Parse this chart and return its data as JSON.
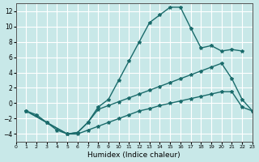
{
  "xlabel": "Humidex (Indice chaleur)",
  "ylabel": "",
  "background_color": "#c8e8e8",
  "grid_color": "#ffffff",
  "line_color": "#1a6b6b",
  "xlim": [
    0,
    23
  ],
  "ylim": [
    -5,
    13
  ],
  "xticks": [
    0,
    1,
    2,
    3,
    4,
    5,
    6,
    7,
    8,
    9,
    10,
    11,
    12,
    13,
    14,
    15,
    16,
    17,
    18,
    19,
    20,
    21,
    22,
    23
  ],
  "yticks": [
    -4,
    -2,
    0,
    2,
    4,
    6,
    8,
    10,
    12
  ],
  "line1_x": [
    1,
    2,
    3,
    4,
    5,
    6,
    7,
    8,
    9,
    10,
    11,
    12,
    13,
    14,
    15,
    16,
    17,
    18,
    19,
    20,
    21,
    22
  ],
  "line1_y": [
    -1,
    -1.5,
    -2.5,
    -3.5,
    -4.0,
    -3.8,
    -2.5,
    -0.5,
    0.5,
    3.0,
    5.5,
    8.0,
    10.5,
    11.5,
    12.5,
    12.5,
    9.8,
    7.2,
    7.5,
    6.8,
    7.0,
    6.8
  ],
  "line3_x": [
    1,
    3,
    5,
    6,
    7,
    8,
    9,
    10,
    11,
    12,
    13,
    14,
    15,
    16,
    17,
    18,
    19,
    20,
    21,
    22,
    23
  ],
  "line3_y": [
    -1,
    -2.5,
    -4.0,
    -3.8,
    -2.5,
    -0.8,
    -0.3,
    0.2,
    0.7,
    1.2,
    1.7,
    2.2,
    2.7,
    3.2,
    3.7,
    4.2,
    4.7,
    5.2,
    3.2,
    0.5,
    -1.0
  ],
  "line4_x": [
    1,
    3,
    5,
    6,
    7,
    8,
    9,
    10,
    11,
    12,
    13,
    14,
    15,
    16,
    17,
    18,
    19,
    20,
    21,
    22,
    23
  ],
  "line4_y": [
    -1,
    -2.5,
    -4.0,
    -4.0,
    -3.5,
    -3.0,
    -2.5,
    -2.0,
    -1.5,
    -1.0,
    -0.7,
    -0.3,
    0.0,
    0.3,
    0.6,
    0.9,
    1.2,
    1.5,
    1.5,
    -0.5,
    -1.0
  ]
}
